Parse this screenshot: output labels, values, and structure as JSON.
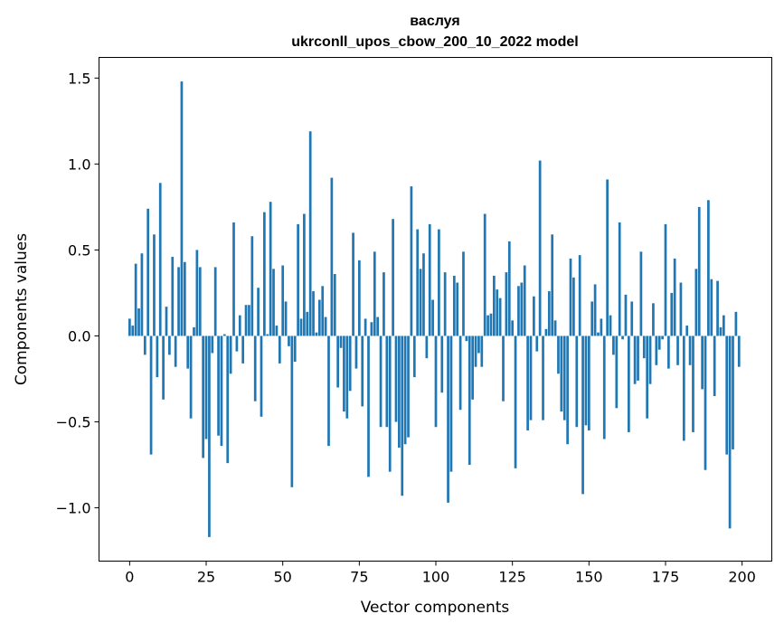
{
  "chart_data": {
    "type": "bar",
    "title": "васлуя",
    "subtitle": "ukrconll_upos_cbow_200_10_2022 model",
    "xlabel": "Vector components",
    "ylabel": "Components values",
    "xlim": [
      -10,
      209.7
    ],
    "ylim": [
      -1.31,
      1.62
    ],
    "xticks": [
      0,
      25,
      50,
      75,
      100,
      125,
      150,
      175,
      200
    ],
    "xtick_labels": [
      "0",
      "25",
      "50",
      "75",
      "100",
      "125",
      "150",
      "175",
      "200"
    ],
    "yticks": [
      -1.0,
      -0.5,
      0.0,
      0.5,
      1.0,
      1.5
    ],
    "ytick_labels": [
      "−1.0",
      "−0.5",
      "0.0",
      "0.5",
      "1.0",
      "1.5"
    ],
    "grid": false,
    "color": "#1f77b4",
    "values": [
      0.1,
      0.06,
      0.42,
      0.16,
      0.48,
      -0.11,
      0.74,
      -0.69,
      0.59,
      -0.24,
      0.89,
      -0.37,
      0.17,
      -0.11,
      0.46,
      -0.18,
      0.4,
      1.48,
      0.43,
      -0.19,
      -0.48,
      0.05,
      0.5,
      0.4,
      -0.71,
      -0.6,
      -1.17,
      -0.1,
      0.4,
      -0.58,
      -0.64,
      0.01,
      -0.74,
      -0.22,
      0.66,
      -0.09,
      0.12,
      -0.16,
      0.18,
      0.18,
      0.58,
      -0.38,
      0.28,
      -0.47,
      0.72,
      0.01,
      0.78,
      0.39,
      0.06,
      -0.16,
      0.41,
      0.2,
      -0.06,
      -0.88,
      -0.15,
      0.65,
      0.1,
      0.71,
      0.14,
      1.19,
      0.26,
      0.02,
      0.21,
      0.29,
      0.11,
      -0.64,
      0.92,
      0.36,
      -0.3,
      -0.07,
      -0.44,
      -0.48,
      -0.32,
      0.6,
      -0.19,
      0.44,
      -0.41,
      0.1,
      -0.82,
      0.08,
      0.49,
      0.11,
      -0.53,
      0.37,
      -0.53,
      -0.79,
      0.68,
      -0.5,
      -0.65,
      -0.93,
      -0.63,
      -0.59,
      0.87,
      -0.24,
      0.62,
      0.39,
      0.48,
      -0.13,
      0.65,
      0.21,
      -0.53,
      0.62,
      -0.33,
      0.37,
      -0.97,
      -0.79,
      0.35,
      0.31,
      -0.43,
      0.49,
      -0.03,
      -0.75,
      -0.37,
      -0.18,
      -0.1,
      -0.18,
      0.71,
      0.12,
      0.13,
      0.35,
      0.27,
      0.22,
      -0.38,
      0.37,
      0.55,
      0.09,
      -0.77,
      0.29,
      0.31,
      0.41,
      -0.55,
      -0.49,
      0.23,
      -0.09,
      1.02,
      -0.49,
      0.04,
      0.26,
      0.59,
      0.09,
      -0.22,
      -0.44,
      -0.49,
      -0.63,
      0.45,
      0.34,
      -0.53,
      0.47,
      -0.92,
      -0.52,
      -0.55,
      0.2,
      0.3,
      0.02,
      0.1,
      -0.6,
      0.91,
      0.12,
      -0.11,
      -0.42,
      0.66,
      -0.02,
      0.24,
      -0.56,
      0.2,
      -0.28,
      -0.26,
      0.49,
      -0.13,
      -0.48,
      -0.28,
      0.19,
      -0.17,
      -0.08,
      -0.02,
      0.65,
      -0.19,
      0.25,
      0.45,
      -0.17,
      0.31,
      -0.61,
      0.06,
      -0.17,
      -0.56,
      0.39,
      0.75,
      -0.31,
      -0.78,
      0.79,
      0.33,
      -0.35,
      0.32,
      0.05,
      0.12,
      -0.69,
      -1.12,
      -0.66,
      0.14,
      -0.18
    ]
  }
}
